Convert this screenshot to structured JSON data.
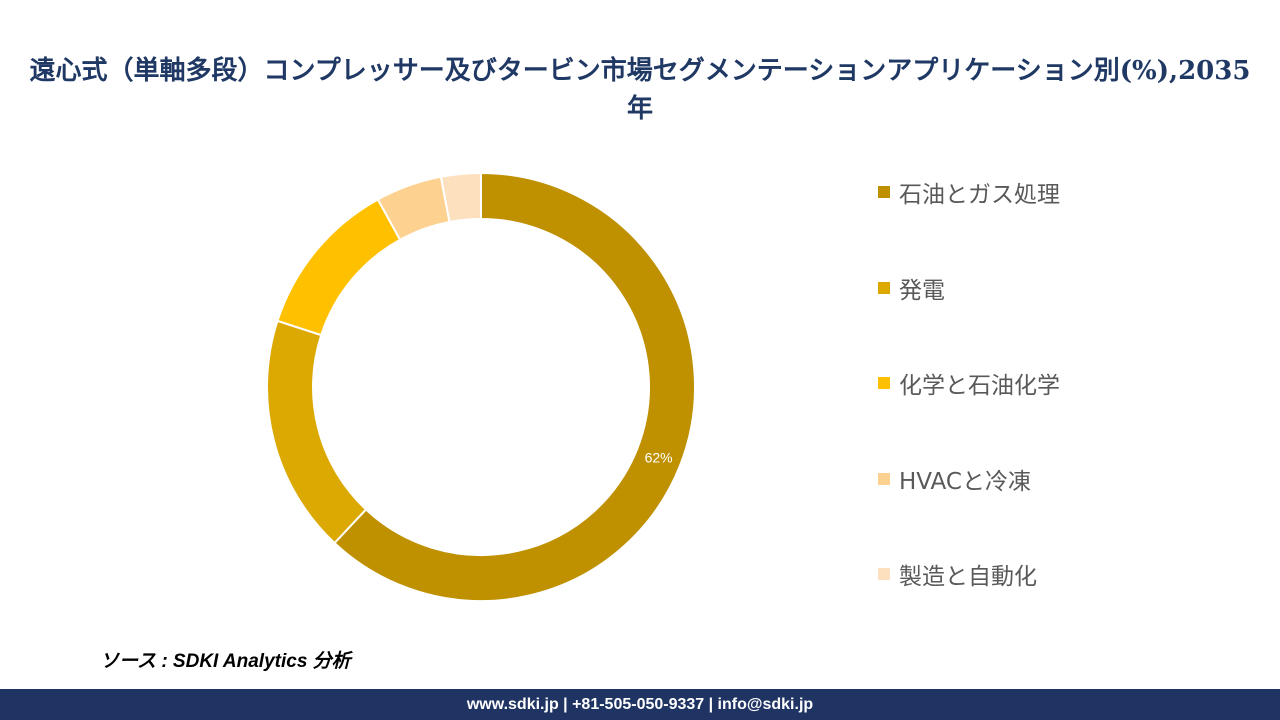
{
  "title": "遠心式（単軸多段）コンプレッサー及びタービン市場セグメンテーションアプリケーション別(%),2035年",
  "chart_data": {
    "type": "pie",
    "donut": true,
    "categories": [
      "石油とガス処理",
      "発電",
      "化学と石油化学",
      "HVACと冷凍",
      "製造と自動化"
    ],
    "values": [
      62,
      18,
      12,
      5,
      3
    ],
    "colors": [
      "#bf9000",
      "#dca802",
      "#ffc000",
      "#fdd18f",
      "#fde0bd"
    ],
    "data_labels": [
      "62%",
      "",
      "",
      "",
      ""
    ],
    "legend_position": "right"
  },
  "source": "ソース : SDKI Analytics 分析",
  "footer": "www.sdki.jp | +81-505-050-9337 | info@sdki.jp"
}
